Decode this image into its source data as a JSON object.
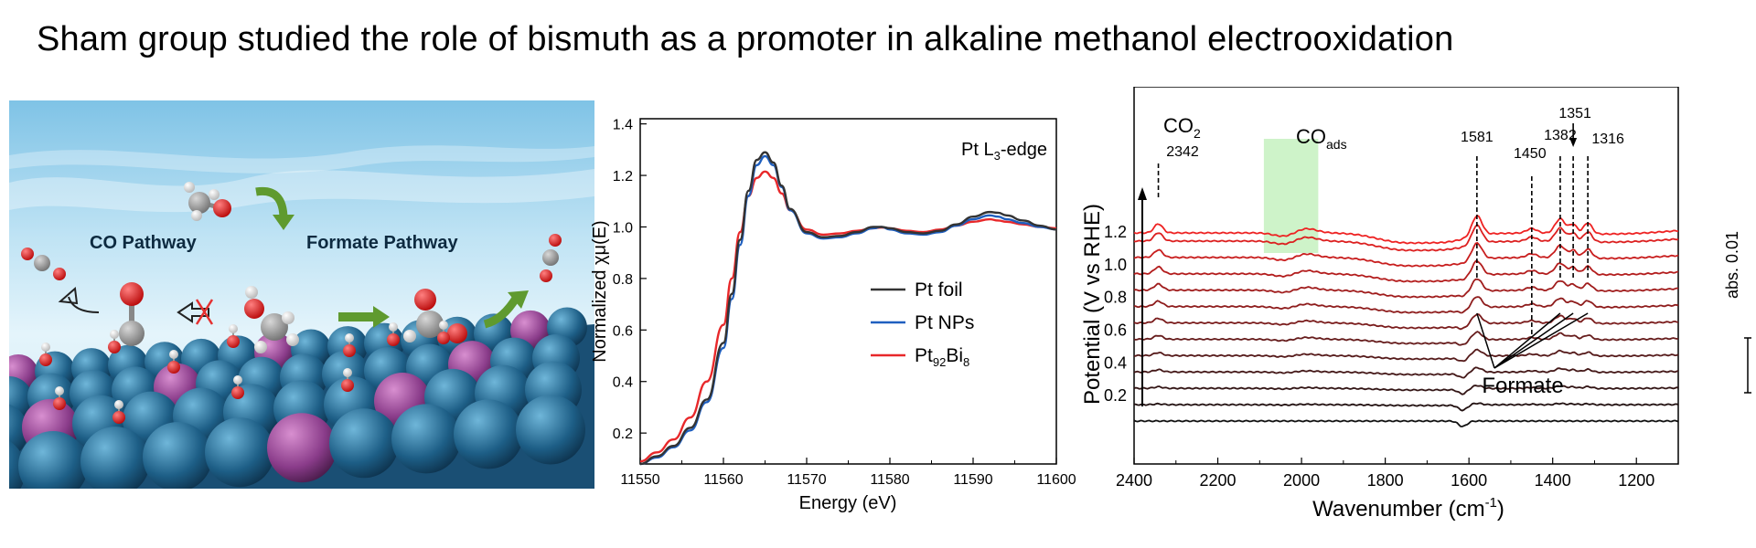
{
  "headline": "Sham group studied the role of bismuth as a promoter in alkaline methanol electrooxidation",
  "illustration": {
    "co_pathway": "CO Pathway",
    "formate_pathway": "Formate Pathway"
  },
  "chart_data": [
    {
      "type": "line",
      "title": "",
      "annotation": {
        "base": "Pt L",
        "sub": "3",
        "rest": "-edge"
      },
      "xlabel": "Energy (eV)",
      "ylabel": "Normalized χμ(E)",
      "xlim": [
        11550,
        11600
      ],
      "ylim": [
        0.08,
        1.42
      ],
      "xticks": [
        11550,
        11560,
        11570,
        11580,
        11590,
        11600
      ],
      "yticks": [
        0.2,
        0.4,
        0.6,
        0.8,
        1.0,
        1.2,
        1.4
      ],
      "legend_position": "center-right",
      "x": [
        11550,
        11552,
        11554,
        11556,
        11558,
        11560,
        11561,
        11562,
        11563,
        11564,
        11565,
        11566,
        11567,
        11568,
        11570,
        11572,
        11574,
        11576,
        11578,
        11579,
        11580,
        11582,
        11584,
        11586,
        11588,
        11590,
        11592,
        11593,
        11594,
        11596,
        11598,
        11600
      ],
      "series": [
        {
          "name": "Pt foil",
          "color": "#333333",
          "values": [
            0.08,
            0.11,
            0.15,
            0.22,
            0.33,
            0.55,
            0.74,
            0.95,
            1.14,
            1.26,
            1.29,
            1.25,
            1.16,
            1.07,
            0.98,
            0.96,
            0.965,
            0.98,
            1.0,
            1.0,
            0.995,
            0.98,
            0.975,
            0.985,
            1.01,
            1.04,
            1.058,
            1.055,
            1.045,
            1.025,
            1.005,
            0.99
          ]
        },
        {
          "name": "Pt NPs",
          "color": "#1f5fbf",
          "values": [
            0.08,
            0.105,
            0.145,
            0.21,
            0.32,
            0.53,
            0.72,
            0.93,
            1.12,
            1.24,
            1.275,
            1.24,
            1.155,
            1.065,
            0.975,
            0.955,
            0.96,
            0.975,
            0.995,
            1.0,
            0.99,
            0.975,
            0.97,
            0.98,
            1.005,
            1.03,
            1.045,
            1.04,
            1.03,
            1.015,
            1.0,
            0.99
          ]
        },
        {
          "name": "Pt92Bi8",
          "color": "#e8282a",
          "values": [
            0.09,
            0.125,
            0.175,
            0.26,
            0.4,
            0.62,
            0.8,
            0.98,
            1.12,
            1.19,
            1.215,
            1.19,
            1.13,
            1.065,
            0.99,
            0.97,
            0.975,
            0.985,
            0.995,
            0.998,
            0.995,
            0.985,
            0.98,
            0.99,
            1.005,
            1.02,
            1.03,
            1.025,
            1.02,
            1.01,
            1.0,
            0.995
          ]
        }
      ],
      "legend_labels": [
        {
          "text": "Pt foil"
        },
        {
          "text": "Pt NPs"
        },
        {
          "base": "Pt",
          "sub1": "92",
          "mid": "Bi",
          "sub2": "8"
        }
      ]
    },
    {
      "type": "line",
      "title": "",
      "xlabel": "Wavenumber (cm⁻¹)",
      "xlabel_parts": {
        "base": "Wavenumber (cm",
        "sup": "-1",
        "end": ")"
      },
      "ylabel": "Potential (V vs RHE)",
      "xlim": [
        2400,
        1100
      ],
      "x_reversed": true,
      "xticks": [
        2400,
        2200,
        2000,
        1800,
        1600,
        1400,
        1200
      ],
      "yticks": [
        0.2,
        0.4,
        0.6,
        0.8,
        1.0,
        1.2
      ],
      "scale_bar": "abs. 0.01",
      "co2_label": {
        "base": "CO",
        "sub": "2"
      },
      "co2_peak": "2342",
      "co_ads_label": {
        "base": "CO",
        "sub": "ads"
      },
      "peak_labels": [
        "1581",
        "1450",
        "1382",
        "1351",
        "1316"
      ],
      "peak_positions": [
        1581,
        1450,
        1382,
        1351,
        1316
      ],
      "formate_label": "Formate",
      "highlight_band": [
        2090,
        1960
      ],
      "series_potentials": [
        0.05,
        0.15,
        0.25,
        0.35,
        0.45,
        0.55,
        0.65,
        0.75,
        0.85,
        0.95,
        1.05,
        1.15,
        1.2
      ],
      "series_colors": [
        "#111111",
        "#221111",
        "#331515",
        "#441818",
        "#551a1a",
        "#661c1c",
        "#7a1c1c",
        "#8e1c1c",
        "#a01c1c",
        "#b31c1c",
        "#c81d1d",
        "#dc1f1f",
        "#ee2222"
      ]
    }
  ]
}
